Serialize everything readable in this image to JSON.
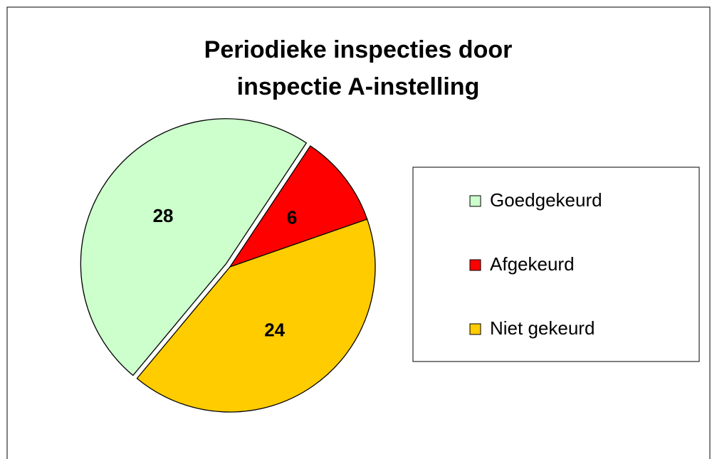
{
  "chart_data": {
    "type": "pie",
    "title": "Periodieke inspecties door inspectie A-instelling",
    "categories": [
      "Goedgekeurd",
      "Afgekeurd",
      "Niet gekeurd"
    ],
    "values": [
      28,
      6,
      24
    ],
    "colors": [
      "#ccffcc",
      "#ff0000",
      "#ffcc00"
    ],
    "legend": "right"
  }
}
